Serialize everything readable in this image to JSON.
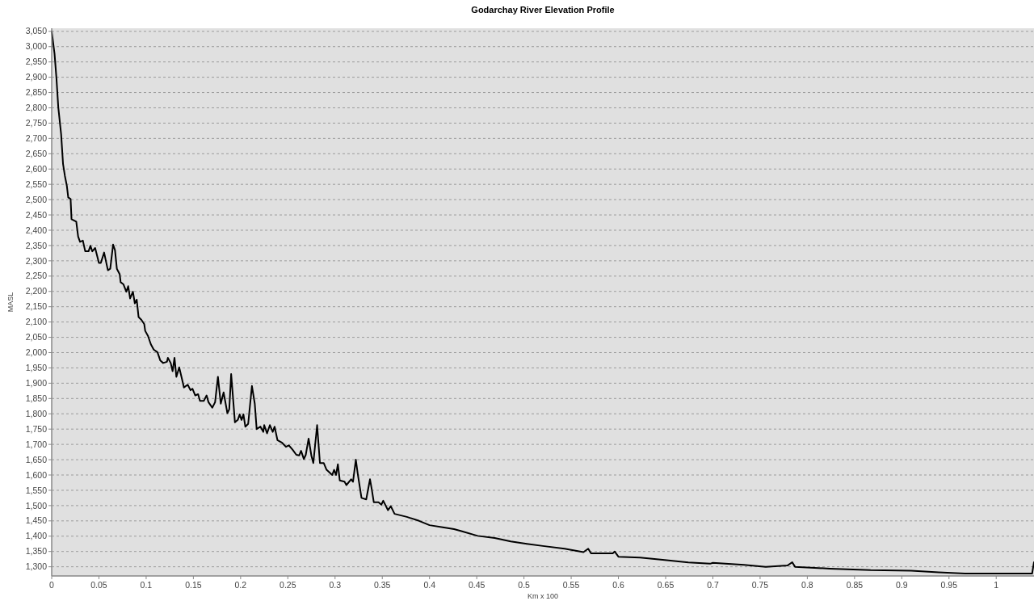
{
  "chart_data": {
    "type": "line",
    "title": "Godarchay River Elevation Profile",
    "xlabel": "Km x 100",
    "ylabel": "MASL",
    "grid": "y",
    "marker": "none",
    "line_style": "solid",
    "xlim": [
      0,
      1.04
    ],
    "ylim": [
      1270,
      3060
    ],
    "xticks": [
      0,
      0.05,
      0.1,
      0.15,
      0.2,
      0.25,
      0.3,
      0.35,
      0.4,
      0.45,
      0.5,
      0.55,
      0.6,
      0.65,
      0.7,
      0.75,
      0.8,
      0.85,
      0.9,
      0.95,
      1
    ],
    "yticks": [
      {
        "value": 1300,
        "label": "1,300"
      },
      {
        "value": 1350,
        "label": "1,350"
      },
      {
        "value": 1400,
        "label": "1,400"
      },
      {
        "value": 1450,
        "label": "1,450"
      },
      {
        "value": 1500,
        "label": "1,500"
      },
      {
        "value": 1550,
        "label": "1,550"
      },
      {
        "value": 1600,
        "label": "1,600"
      },
      {
        "value": 1650,
        "label": "1,650"
      },
      {
        "value": 1700,
        "label": "1,700"
      },
      {
        "value": 1750,
        "label": "1,750"
      },
      {
        "value": 1800,
        "label": "1,800"
      },
      {
        "value": 1850,
        "label": "1,850"
      },
      {
        "value": 1900,
        "label": "1,900"
      },
      {
        "value": 1950,
        "label": "1,950"
      },
      {
        "value": 2000,
        "label": "2,000"
      },
      {
        "value": 2050,
        "label": "2,050"
      },
      {
        "value": 2100,
        "label": "2,100"
      },
      {
        "value": 2150,
        "label": "2,150"
      },
      {
        "value": 2200,
        "label": "2,200"
      },
      {
        "value": 2250,
        "label": "2,250"
      },
      {
        "value": 2300,
        "label": "2,300"
      },
      {
        "value": 2350,
        "label": "2,350"
      },
      {
        "value": 2400,
        "label": "2,400"
      },
      {
        "value": 2450,
        "label": "2,450"
      },
      {
        "value": 2500,
        "label": "2,500"
      },
      {
        "value": 2550,
        "label": "2,550"
      },
      {
        "value": 2600,
        "label": "2,600"
      },
      {
        "value": 2650,
        "label": "2,650"
      },
      {
        "value": 2700,
        "label": "2,700"
      },
      {
        "value": 2750,
        "label": "2,750"
      },
      {
        "value": 2800,
        "label": "2,800"
      },
      {
        "value": 2850,
        "label": "2,850"
      },
      {
        "value": 2900,
        "label": "2,900"
      },
      {
        "value": 2950,
        "label": "2,950"
      },
      {
        "value": 3000,
        "label": "3,000"
      },
      {
        "value": 3050,
        "label": "3,050"
      }
    ],
    "series": [
      {
        "color": "#000000",
        "x": [
          0,
          0.003,
          0.005,
          0.007,
          0.01,
          0.012,
          0.014,
          0.016,
          0.0175,
          0.02,
          0.021,
          0.026,
          0.028,
          0.03,
          0.033,
          0.0355,
          0.039,
          0.041,
          0.043,
          0.046,
          0.05,
          0.052,
          0.0555,
          0.0595,
          0.062,
          0.065,
          0.067,
          0.069,
          0.072,
          0.073,
          0.076,
          0.079,
          0.081,
          0.083,
          0.086,
          0.088,
          0.09,
          0.092,
          0.095,
          0.098,
          0.099,
          0.102,
          0.105,
          0.108,
          0.112,
          0.115,
          0.118,
          0.122,
          0.123,
          0.126,
          0.128,
          0.13,
          0.132,
          0.135,
          0.138,
          0.14,
          0.144,
          0.147,
          0.149,
          0.152,
          0.155,
          0.157,
          0.161,
          0.164,
          0.166,
          0.17,
          0.173,
          0.176,
          0.179,
          0.182,
          0.186,
          0.188,
          0.19,
          0.192,
          0.194,
          0.197,
          0.199,
          0.201,
          0.203,
          0.205,
          0.208,
          0.212,
          0.215,
          0.217,
          0.221,
          0.224,
          0.225,
          0.228,
          0.231,
          0.234,
          0.236,
          0.239,
          0.244,
          0.248,
          0.251,
          0.255,
          0.259,
          0.262,
          0.264,
          0.267,
          0.269,
          0.272,
          0.275,
          0.277,
          0.281,
          0.284,
          0.288,
          0.291,
          0.297,
          0.299,
          0.301,
          0.303,
          0.305,
          0.31,
          0.312,
          0.317,
          0.319,
          0.322,
          0.324,
          0.328,
          0.333,
          0.337,
          0.339,
          0.341,
          0.346,
          0.349,
          0.351,
          0.356,
          0.359,
          0.363,
          0.376,
          0.389,
          0.4,
          0.414,
          0.426,
          0.433,
          0.451,
          0.469,
          0.486,
          0.503,
          0.52,
          0.543,
          0.563,
          0.568,
          0.571,
          0.594,
          0.596,
          0.6,
          0.623,
          0.649,
          0.674,
          0.697,
          0.7,
          0.733,
          0.756,
          0.779,
          0.784,
          0.787,
          0.824,
          0.867,
          0.91,
          0.939,
          0.967,
          0.996,
          1.024,
          1.038,
          1.04
        ],
        "values": [
          3050,
          2977,
          2898,
          2801,
          2713,
          2617,
          2577,
          2546,
          2507,
          2502,
          2436,
          2428,
          2379,
          2362,
          2366,
          2331,
          2331,
          2349,
          2331,
          2342,
          2293,
          2293,
          2327,
          2269,
          2274,
          2353,
          2335,
          2274,
          2256,
          2230,
          2223,
          2199,
          2217,
          2177,
          2199,
          2161,
          2173,
          2116,
          2107,
          2093,
          2071,
          2054,
          2027,
          2010,
          2001,
          1974,
          1966,
          1970,
          1983,
          1966,
          1939,
          1983,
          1921,
          1952,
          1913,
          1886,
          1895,
          1877,
          1882,
          1860,
          1864,
          1842,
          1842,
          1860,
          1838,
          1820,
          1838,
          1921,
          1833,
          1870,
          1802,
          1815,
          1930,
          1851,
          1772,
          1780,
          1798,
          1780,
          1798,
          1758,
          1767,
          1891,
          1833,
          1750,
          1758,
          1741,
          1763,
          1736,
          1763,
          1741,
          1758,
          1714,
          1705,
          1692,
          1697,
          1683,
          1666,
          1664,
          1679,
          1652,
          1666,
          1719,
          1662,
          1639,
          1763,
          1639,
          1639,
          1617,
          1600,
          1617,
          1600,
          1635,
          1582,
          1578,
          1567,
          1586,
          1578,
          1650,
          1604,
          1525,
          1520,
          1586,
          1551,
          1511,
          1511,
          1503,
          1516,
          1485,
          1498,
          1473,
          1463,
          1450,
          1436,
          1429,
          1423,
          1417,
          1401,
          1394,
          1383,
          1375,
          1368,
          1359,
          1348,
          1359,
          1344,
          1344,
          1350,
          1333,
          1330,
          1322,
          1314,
          1310,
          1313,
          1306,
          1300,
          1304,
          1315,
          1300,
          1294,
          1289,
          1287,
          1282,
          1278,
          1278,
          1278,
          1278,
          1315
        ]
      }
    ]
  }
}
